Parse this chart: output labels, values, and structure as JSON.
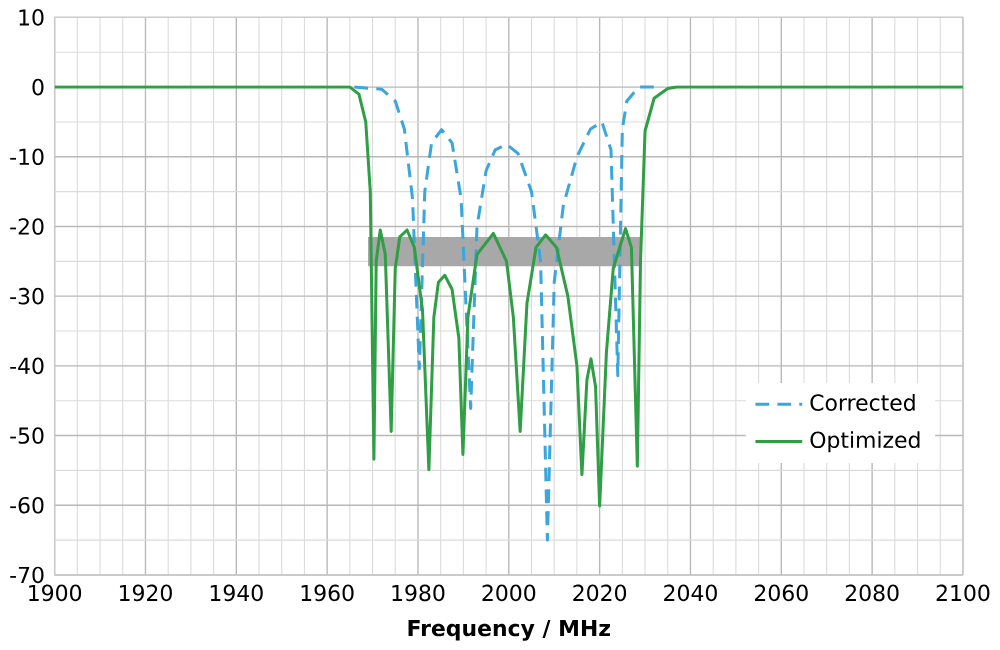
{
  "chart_data": {
    "type": "line",
    "xlabel": "Frequency / MHz",
    "xlim": [
      1900,
      2100
    ],
    "ylim": [
      -70,
      10
    ],
    "xticks": [
      1900,
      1920,
      1940,
      1960,
      1980,
      2000,
      2020,
      2040,
      2060,
      2080,
      2100
    ],
    "yticks": [
      -70,
      -60,
      -50,
      -40,
      -30,
      -20,
      -10,
      0,
      10
    ],
    "grid": true,
    "legend": "bottom right",
    "marker": "none",
    "series": [
      {
        "color": "#a8a8a8",
        "x": [
          1969,
          2029
        ],
        "values": [
          -25.5,
          -25.5
        ],
        "lower": [
          -25.5,
          -25.5
        ],
        "upper": [
          -21.5,
          -21.5
        ]
      },
      {
        "name": "Corrected",
        "color": "#3aa6dd",
        "line_style": "dashed",
        "x": [
          1966,
          1972,
          1975,
          1977,
          1978.8,
          1980.3,
          1981.5,
          1983,
          1985.2,
          1987.5,
          1989.5,
          1991.6,
          1993,
          1995,
          1997,
          1999.5,
          2002,
          2005,
          2007,
          2008.5,
          2010,
          2012,
          2015,
          2018,
          2020.5,
          2022.5,
          2024,
          2025,
          2026,
          2028.6,
          2032
        ],
        "values": [
          0,
          -0.3,
          -2,
          -6,
          -16,
          -40.4,
          -15,
          -8,
          -6.1,
          -8,
          -16,
          -46.1,
          -20,
          -12,
          -9,
          -8.2,
          -9.5,
          -15,
          -25,
          -65,
          -28,
          -17,
          -10,
          -6,
          -5,
          -9,
          -41.4,
          -6,
          -2,
          0,
          0
        ]
      },
      {
        "name": "Optimized",
        "color": "#2f9e44",
        "line_style": "solid",
        "x": [
          1900,
          1965,
          1967,
          1968.5,
          1969.5,
          1970.3,
          1970.8,
          1971.7,
          1972.8,
          1974.1,
          1975,
          1976,
          1977.6,
          1979.2,
          1981,
          1982.4,
          1983.5,
          1984.5,
          1985.9,
          1987.5,
          1989,
          1989.9,
          1991,
          1993,
          1996.6,
          1999.5,
          2001,
          2002.5,
          2004,
          2006,
          2008.1,
          2010.5,
          2013,
          2015,
          2016.1,
          2017.2,
          2018.1,
          2019.1,
          2020,
          2021.5,
          2023,
          2025.7,
          2027,
          2028.3,
          2029,
          2030,
          2032,
          2035,
          2037,
          2100
        ],
        "values": [
          0,
          0,
          -1,
          -5,
          -15,
          -53.4,
          -25,
          -20.5,
          -24,
          -49.4,
          -26,
          -21.5,
          -20.5,
          -23,
          -32,
          -54.9,
          -33,
          -28,
          -27,
          -29,
          -36,
          -52.7,
          -33,
          -24,
          -21,
          -25,
          -33,
          -49.4,
          -31,
          -23,
          -21.2,
          -23,
          -30,
          -40,
          -55.6,
          -42,
          -39,
          -43,
          -60.1,
          -38,
          -26,
          -20.3,
          -23,
          -54.4,
          -25,
          -6.3,
          -1.6,
          -0.2,
          0,
          0
        ]
      }
    ]
  }
}
